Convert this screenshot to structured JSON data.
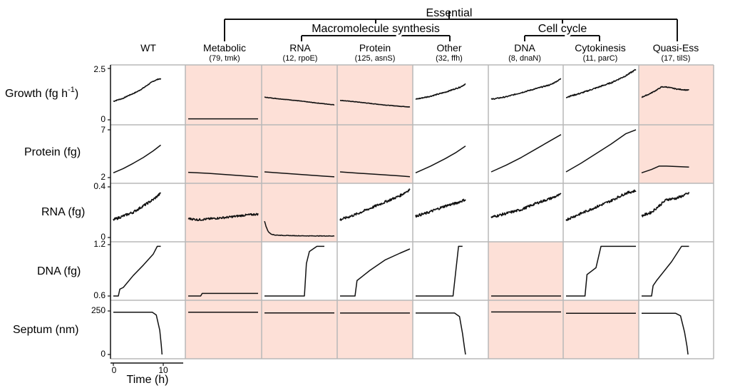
{
  "header": {
    "essential": "Essential",
    "macro": "Macromolecule synthesis",
    "cellcycle": "Cell cycle"
  },
  "columns": [
    {
      "name": "WT",
      "sub": ""
    },
    {
      "name": "Metabolic",
      "sub": "(79, tmk)"
    },
    {
      "name": "RNA",
      "sub": "(12, rpoE)"
    },
    {
      "name": "Protein",
      "sub": "(125, asnS)"
    },
    {
      "name": "Other",
      "sub": "(32, ffh)"
    },
    {
      "name": "DNA",
      "sub": "(8, dnaN)"
    },
    {
      "name": "Cytokinesis",
      "sub": "(11, parC)"
    },
    {
      "name": "Quasi-Ess",
      "sub": "(17, tilS)"
    }
  ],
  "rows": [
    {
      "label": "Growth (fg h",
      "sup": "-1",
      "tail": ")",
      "tick_top": "2.5",
      "tick_bottom": "0",
      "ylim": [
        0,
        2.5
      ]
    },
    {
      "label": "Protein (fg)",
      "sup": "",
      "tail": "",
      "tick_top": "7",
      "tick_bottom": "2",
      "ylim": [
        2,
        7
      ]
    },
    {
      "label": "RNA (fg)",
      "sup": "",
      "tail": "",
      "tick_top": "0.4",
      "tick_bottom": "0",
      "ylim": [
        0,
        0.4
      ]
    },
    {
      "label": "DNA (fg)",
      "sup": "",
      "tail": "",
      "tick_top": "1.2",
      "tick_bottom": "0.6",
      "ylim": [
        0.6,
        1.2
      ]
    },
    {
      "label": "Septum (nm)",
      "sup": "",
      "tail": "",
      "tick_top": "250",
      "tick_bottom": "0",
      "ylim": [
        0,
        270
      ]
    }
  ],
  "xaxis": {
    "label": "Time (h)",
    "tick0": "0",
    "tick10": "10",
    "xlim": [
      0,
      14
    ]
  },
  "colors": {
    "highlight": "#fde0d7",
    "grid": "#b8b8b8",
    "line": "#111111"
  },
  "chart_data": {
    "type": "line",
    "title": "",
    "xlabel": "Time (h)",
    "highlighted": [
      [
        false,
        true,
        true,
        true,
        false,
        false,
        false,
        true
      ],
      [
        false,
        true,
        true,
        true,
        false,
        false,
        false,
        true
      ],
      [
        false,
        true,
        true,
        false,
        false,
        false,
        false,
        false
      ],
      [
        false,
        true,
        false,
        false,
        false,
        true,
        false,
        false
      ],
      [
        false,
        true,
        true,
        true,
        false,
        true,
        true,
        false
      ]
    ],
    "panels": [
      [
        {
          "pts": [
            [
              0,
              0.9
            ],
            [
              1,
              0.98
            ],
            [
              2,
              1.05
            ],
            [
              3,
              1.18
            ],
            [
              4,
              1.28
            ],
            [
              5,
              1.4
            ],
            [
              6,
              1.55
            ],
            [
              7,
              1.72
            ],
            [
              8,
              1.88
            ],
            [
              9,
              1.98
            ],
            [
              9.5,
              2.0
            ]
          ],
          "noise": 0.02
        },
        {
          "pts": [
            [
              0,
              0.05
            ],
            [
              14,
              0.05
            ]
          ],
          "noise": 0
        },
        {
          "pts": [
            [
              0,
              1.1
            ],
            [
              3,
              1.02
            ],
            [
              6,
              0.95
            ],
            [
              9,
              0.86
            ],
            [
              12,
              0.78
            ],
            [
              14,
              0.73
            ]
          ],
          "noise": 0.01
        },
        {
          "pts": [
            [
              0,
              0.95
            ],
            [
              3,
              0.88
            ],
            [
              6,
              0.8
            ],
            [
              9,
              0.72
            ],
            [
              12,
              0.66
            ],
            [
              14,
              0.63
            ]
          ],
          "noise": 0.01
        },
        {
          "pts": [
            [
              0,
              1.0
            ],
            [
              3,
              1.15
            ],
            [
              6,
              1.35
            ],
            [
              9,
              1.6
            ],
            [
              10,
              1.75
            ]
          ],
          "noise": 0.025
        },
        {
          "pts": [
            [
              0,
              1.0
            ],
            [
              3,
              1.12
            ],
            [
              6,
              1.32
            ],
            [
              9,
              1.52
            ],
            [
              12,
              1.72
            ],
            [
              14,
              2.0
            ]
          ],
          "noise": 0.025
        },
        {
          "pts": [
            [
              0,
              1.1
            ],
            [
              3,
              1.3
            ],
            [
              6,
              1.55
            ],
            [
              9,
              1.8
            ],
            [
              12,
              2.15
            ],
            [
              14,
              2.45
            ]
          ],
          "noise": 0.03
        },
        {
          "pts": [
            [
              0,
              1.1
            ],
            [
              1.5,
              1.25
            ],
            [
              3,
              1.45
            ],
            [
              4,
              1.6
            ],
            [
              5,
              1.6
            ],
            [
              7,
              1.5
            ],
            [
              9,
              1.45
            ],
            [
              9.5,
              1.45
            ]
          ],
          "noise": 0.02
        }
      ],
      [
        {
          "pts": [
            [
              0,
              2.5
            ],
            [
              2,
              2.95
            ],
            [
              4,
              3.5
            ],
            [
              6,
              4.1
            ],
            [
              8,
              4.8
            ],
            [
              9.5,
              5.4
            ]
          ],
          "noise": 0
        },
        {
          "pts": [
            [
              0,
              2.55
            ],
            [
              4,
              2.45
            ],
            [
              8,
              2.3
            ],
            [
              12,
              2.15
            ],
            [
              14,
              2.07
            ]
          ],
          "noise": 0
        },
        {
          "pts": [
            [
              0,
              2.6
            ],
            [
              4,
              2.45
            ],
            [
              8,
              2.3
            ],
            [
              12,
              2.15
            ],
            [
              14,
              2.08
            ]
          ],
          "noise": 0
        },
        {
          "pts": [
            [
              0,
              2.6
            ],
            [
              4,
              2.45
            ],
            [
              8,
              2.32
            ],
            [
              12,
              2.18
            ],
            [
              14,
              2.1
            ]
          ],
          "noise": 0
        },
        {
          "pts": [
            [
              0,
              2.5
            ],
            [
              3,
              3.2
            ],
            [
              6,
              4.0
            ],
            [
              8,
              4.6
            ],
            [
              10,
              5.3
            ]
          ],
          "noise": 0
        },
        {
          "pts": [
            [
              0,
              2.6
            ],
            [
              3,
              3.3
            ],
            [
              6,
              4.1
            ],
            [
              9,
              5.0
            ],
            [
              12,
              5.9
            ],
            [
              14,
              6.5
            ]
          ],
          "noise": 0
        },
        {
          "pts": [
            [
              0,
              2.6
            ],
            [
              3,
              3.5
            ],
            [
              6,
              4.5
            ],
            [
              9,
              5.5
            ],
            [
              12,
              6.6
            ],
            [
              14,
              7.0
            ]
          ],
          "noise": 0
        },
        {
          "pts": [
            [
              0,
              2.5
            ],
            [
              2,
              2.85
            ],
            [
              3.5,
              3.2
            ],
            [
              5,
              3.2
            ],
            [
              9.5,
              3.1
            ]
          ],
          "noise": 0
        }
      ],
      [
        {
          "pts": [
            [
              0,
              0.14
            ],
            [
              2,
              0.17
            ],
            [
              4,
              0.2
            ],
            [
              6,
              0.25
            ],
            [
              8,
              0.3
            ],
            [
              9.5,
              0.35
            ]
          ],
          "noise": 0.01
        },
        {
          "pts": [
            [
              0,
              0.15
            ],
            [
              2,
              0.14
            ],
            [
              5,
              0.15
            ],
            [
              8,
              0.16
            ],
            [
              11,
              0.175
            ],
            [
              14,
              0.185
            ]
          ],
          "noise": 0.008
        },
        {
          "pts": [
            [
              0,
              0.13
            ],
            [
              0.3,
              0.09
            ],
            [
              0.7,
              0.05
            ],
            [
              1.2,
              0.03
            ],
            [
              2,
              0.02
            ],
            [
              4,
              0.016
            ],
            [
              8,
              0.013
            ],
            [
              14,
              0.012
            ]
          ],
          "noise": 0.002
        },
        {
          "pts": [
            [
              0,
              0.14
            ],
            [
              3,
              0.18
            ],
            [
              6,
              0.23
            ],
            [
              9,
              0.28
            ],
            [
              12,
              0.33
            ],
            [
              14,
              0.38
            ]
          ],
          "noise": 0.01
        },
        {
          "pts": [
            [
              0,
              0.17
            ],
            [
              2,
              0.19
            ],
            [
              4,
              0.22
            ],
            [
              6,
              0.25
            ],
            [
              8,
              0.27
            ],
            [
              10,
              0.3
            ]
          ],
          "noise": 0.01
        },
        {
          "pts": [
            [
              0,
              0.16
            ],
            [
              3,
              0.19
            ],
            [
              6,
              0.22
            ],
            [
              9,
              0.27
            ],
            [
              12,
              0.31
            ],
            [
              14,
              0.34
            ]
          ],
          "noise": 0.01
        },
        {
          "pts": [
            [
              0,
              0.14
            ],
            [
              3,
              0.19
            ],
            [
              6,
              0.24
            ],
            [
              9,
              0.29
            ],
            [
              12,
              0.35
            ],
            [
              14,
              0.37
            ]
          ],
          "noise": 0.01
        },
        {
          "pts": [
            [
              0,
              0.17
            ],
            [
              2,
              0.2
            ],
            [
              3.5,
              0.25
            ],
            [
              5,
              0.3
            ],
            [
              7,
              0.31
            ],
            [
              9.5,
              0.35
            ]
          ],
          "noise": 0.01
        }
      ],
      [
        {
          "pts": [
            [
              0,
              0.6
            ],
            [
              1,
              0.6
            ],
            [
              1.3,
              0.68
            ],
            [
              2,
              0.7
            ],
            [
              4,
              0.84
            ],
            [
              6,
              0.96
            ],
            [
              8,
              1.09
            ],
            [
              8.8,
              1.18
            ],
            [
              9.5,
              1.18
            ]
          ],
          "noise": 0
        },
        {
          "pts": [
            [
              0,
              0.6
            ],
            [
              2.5,
              0.6
            ],
            [
              2.8,
              0.63
            ],
            [
              14,
              0.63
            ]
          ],
          "noise": 0
        },
        {
          "pts": [
            [
              0,
              0.6
            ],
            [
              8,
              0.6
            ],
            [
              8.4,
              0.98
            ],
            [
              9,
              1.12
            ],
            [
              10.5,
              1.18
            ],
            [
              12,
              1.18
            ]
          ],
          "noise": 0
        },
        {
          "pts": [
            [
              0,
              0.6
            ],
            [
              3,
              0.6
            ],
            [
              3.4,
              0.78
            ],
            [
              6,
              0.9
            ],
            [
              9,
              1.02
            ],
            [
              12,
              1.1
            ],
            [
              14,
              1.15
            ]
          ],
          "noise": 0
        },
        {
          "pts": [
            [
              0,
              0.6
            ],
            [
              7.5,
              0.6
            ],
            [
              8.6,
              1.18
            ],
            [
              9.4,
              1.18
            ]
          ],
          "noise": 0
        },
        {
          "pts": [
            [
              0,
              0.6
            ],
            [
              14,
              0.6
            ]
          ],
          "noise": 0
        },
        {
          "pts": [
            [
              0,
              0.6
            ],
            [
              3.8,
              0.6
            ],
            [
              4.2,
              0.85
            ],
            [
              6,
              0.93
            ],
            [
              7,
              1.18
            ],
            [
              14,
              1.18
            ]
          ],
          "noise": 0
        },
        {
          "pts": [
            [
              0,
              0.6
            ],
            [
              2,
              0.6
            ],
            [
              2.3,
              0.72
            ],
            [
              3,
              0.78
            ],
            [
              6,
              1.0
            ],
            [
              8,
              1.18
            ],
            [
              9.5,
              1.18
            ]
          ],
          "noise": 0
        }
      ],
      [
        {
          "pts": [
            [
              0,
              262
            ],
            [
              7.8,
              262
            ],
            [
              8.6,
              245
            ],
            [
              9.3,
              150
            ],
            [
              9.6,
              60
            ],
            [
              9.75,
              0
            ]
          ],
          "noise": 0
        },
        {
          "pts": [
            [
              0,
              262
            ],
            [
              14,
              262
            ]
          ],
          "noise": 0
        },
        {
          "pts": [
            [
              0,
              258
            ],
            [
              14,
              258
            ]
          ],
          "noise": 0
        },
        {
          "pts": [
            [
              0,
              257
            ],
            [
              14,
              257
            ]
          ],
          "noise": 0
        },
        {
          "pts": [
            [
              0,
              257
            ],
            [
              7.8,
              257
            ],
            [
              8.8,
              235
            ],
            [
              9.4,
              130
            ],
            [
              9.8,
              40
            ],
            [
              10,
              0
            ]
          ],
          "noise": 0
        },
        {
          "pts": [
            [
              0,
              264
            ],
            [
              14,
              264
            ]
          ],
          "noise": 0
        },
        {
          "pts": [
            [
              0,
              256
            ],
            [
              14,
              256
            ]
          ],
          "noise": 0
        },
        {
          "pts": [
            [
              0,
              256
            ],
            [
              6.8,
              256
            ],
            [
              7.8,
              240
            ],
            [
              8.6,
              140
            ],
            [
              9.1,
              50
            ],
            [
              9.3,
              0
            ]
          ],
          "noise": 0
        }
      ]
    ]
  }
}
